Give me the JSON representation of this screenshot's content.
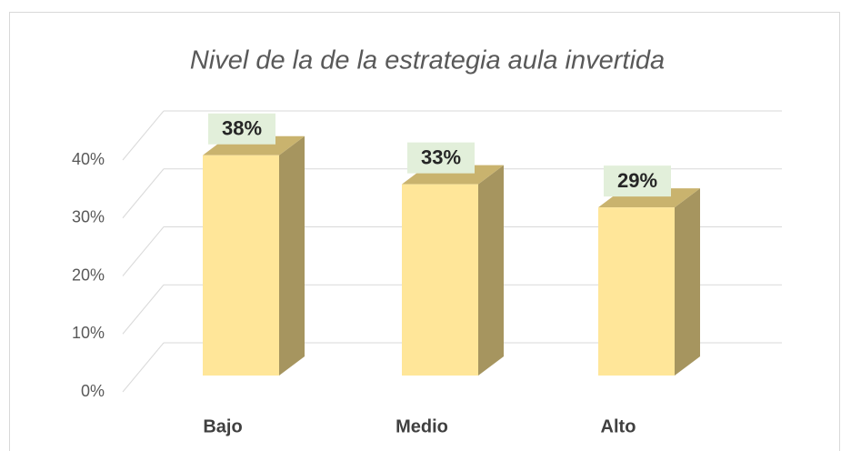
{
  "chart_data": {
    "type": "bar3d",
    "title": "Nivel de la de la estrategia aula invertida",
    "categories": [
      "Bajo",
      "Medio",
      "Alto"
    ],
    "values": [
      38,
      33,
      29
    ],
    "value_labels": [
      "38%",
      "33%",
      "29%"
    ],
    "color": "#ffe699",
    "ylim": [
      0,
      40
    ],
    "yticks": [
      {
        "value": 0,
        "label": "0%"
      },
      {
        "value": 10,
        "label": "10%"
      },
      {
        "value": 20,
        "label": "20%"
      },
      {
        "value": 30,
        "label": "30%"
      },
      {
        "value": 40,
        "label": "40%"
      }
    ],
    "grid": true
  }
}
